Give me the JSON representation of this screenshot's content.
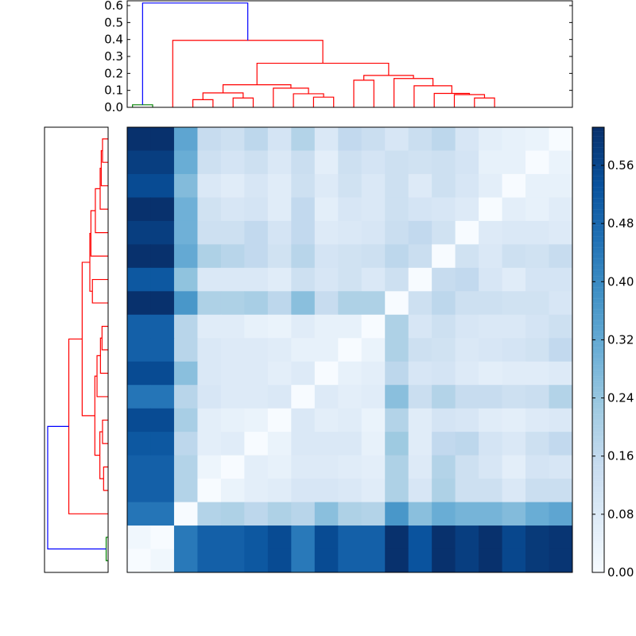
{
  "chart_data": [
    {
      "type": "heatmap",
      "colormap": "Blues",
      "vmin": 0.0,
      "vmax": 0.6125,
      "colorbar_ticks": [
        "0.00",
        "0.08",
        "0.16",
        "0.24",
        "0.32",
        "0.40",
        "0.48",
        "0.56"
      ],
      "matrix": [
        [
          0.61,
          0.61,
          0.33,
          0.15,
          0.13,
          0.17,
          0.11,
          0.19,
          0.09,
          0.16,
          0.14,
          0.1,
          0.14,
          0.17,
          0.1,
          0.06,
          0.05,
          0.04,
          0.0
        ],
        [
          0.58,
          0.58,
          0.31,
          0.13,
          0.11,
          0.13,
          0.09,
          0.14,
          0.06,
          0.13,
          0.11,
          0.13,
          0.12,
          0.13,
          0.11,
          0.05,
          0.05,
          0.0,
          0.04
        ],
        [
          0.55,
          0.55,
          0.27,
          0.09,
          0.07,
          0.1,
          0.07,
          0.13,
          0.08,
          0.12,
          0.09,
          0.13,
          0.08,
          0.13,
          0.1,
          0.06,
          0.0,
          0.05,
          0.05
        ],
        [
          0.61,
          0.61,
          0.3,
          0.12,
          0.1,
          0.11,
          0.07,
          0.16,
          0.06,
          0.1,
          0.09,
          0.13,
          0.11,
          0.1,
          0.08,
          0.0,
          0.06,
          0.05,
          0.07
        ],
        [
          0.58,
          0.58,
          0.3,
          0.13,
          0.13,
          0.16,
          0.11,
          0.16,
          0.08,
          0.09,
          0.1,
          0.14,
          0.16,
          0.12,
          0.0,
          0.08,
          0.09,
          0.09,
          0.08
        ],
        [
          0.61,
          0.61,
          0.32,
          0.2,
          0.18,
          0.16,
          0.12,
          0.18,
          0.11,
          0.12,
          0.13,
          0.17,
          0.14,
          0.0,
          0.12,
          0.09,
          0.13,
          0.12,
          0.15
        ],
        [
          0.52,
          0.52,
          0.25,
          0.09,
          0.09,
          0.09,
          0.07,
          0.13,
          0.1,
          0.12,
          0.09,
          0.13,
          0.0,
          0.15,
          0.16,
          0.1,
          0.07,
          0.11,
          0.11
        ],
        [
          0.61,
          0.61,
          0.37,
          0.2,
          0.2,
          0.21,
          0.17,
          0.26,
          0.15,
          0.2,
          0.2,
          0.0,
          0.13,
          0.17,
          0.13,
          0.13,
          0.12,
          0.12,
          0.1
        ],
        [
          0.5,
          0.5,
          0.18,
          0.07,
          0.07,
          0.05,
          0.04,
          0.07,
          0.05,
          0.05,
          0.0,
          0.2,
          0.1,
          0.13,
          0.1,
          0.09,
          0.09,
          0.11,
          0.13
        ],
        [
          0.5,
          0.5,
          0.18,
          0.09,
          0.08,
          0.08,
          0.07,
          0.05,
          0.05,
          0.0,
          0.04,
          0.2,
          0.13,
          0.12,
          0.09,
          0.1,
          0.11,
          0.12,
          0.16
        ],
        [
          0.55,
          0.55,
          0.26,
          0.09,
          0.08,
          0.08,
          0.06,
          0.08,
          0.0,
          0.05,
          0.06,
          0.17,
          0.1,
          0.11,
          0.08,
          0.06,
          0.07,
          0.07,
          0.08
        ],
        [
          0.45,
          0.45,
          0.18,
          0.1,
          0.08,
          0.08,
          0.09,
          0.0,
          0.08,
          0.06,
          0.07,
          0.26,
          0.14,
          0.19,
          0.15,
          0.15,
          0.13,
          0.14,
          0.19
        ],
        [
          0.55,
          0.55,
          0.21,
          0.06,
          0.05,
          0.04,
          0.0,
          0.09,
          0.06,
          0.07,
          0.04,
          0.19,
          0.07,
          0.11,
          0.1,
          0.07,
          0.06,
          0.08,
          0.09
        ],
        [
          0.52,
          0.52,
          0.17,
          0.06,
          0.07,
          0.0,
          0.04,
          0.09,
          0.09,
          0.09,
          0.05,
          0.23,
          0.07,
          0.16,
          0.17,
          0.11,
          0.09,
          0.13,
          0.16
        ],
        [
          0.5,
          0.5,
          0.19,
          0.03,
          0.0,
          0.06,
          0.05,
          0.08,
          0.08,
          0.07,
          0.06,
          0.2,
          0.08,
          0.19,
          0.13,
          0.1,
          0.06,
          0.11,
          0.1
        ],
        [
          0.5,
          0.5,
          0.19,
          0.0,
          0.04,
          0.06,
          0.07,
          0.1,
          0.1,
          0.09,
          0.07,
          0.2,
          0.1,
          0.2,
          0.13,
          0.13,
          0.09,
          0.14,
          0.14
        ],
        [
          0.45,
          0.45,
          0.0,
          0.19,
          0.2,
          0.17,
          0.2,
          0.18,
          0.26,
          0.2,
          0.19,
          0.37,
          0.26,
          0.31,
          0.29,
          0.29,
          0.27,
          0.31,
          0.33
        ],
        [
          0.02,
          0.0,
          0.44,
          0.5,
          0.5,
          0.52,
          0.55,
          0.44,
          0.55,
          0.5,
          0.5,
          0.61,
          0.53,
          0.61,
          0.58,
          0.61,
          0.56,
          0.59,
          0.6
        ],
        [
          0.0,
          0.02,
          0.44,
          0.5,
          0.5,
          0.52,
          0.55,
          0.44,
          0.55,
          0.5,
          0.5,
          0.61,
          0.53,
          0.61,
          0.58,
          0.61,
          0.56,
          0.59,
          0.6
        ]
      ]
    },
    {
      "type": "dendrogram",
      "orientation": "top",
      "ylim": [
        0,
        0.635
      ],
      "yticks": [
        "0.0",
        "0.1",
        "0.2",
        "0.3",
        "0.4",
        "0.5",
        "0.6"
      ],
      "link_colors": {
        "cluster_a": "#008000",
        "cluster_b": "#ff0000",
        "above_threshold": "#0000ff"
      },
      "linkage": [
        [
          0,
          1,
          0.015,
          "cluster_a"
        ],
        [
          3,
          4,
          0.045,
          "cluster_b"
        ],
        [
          5,
          6,
          0.055,
          "cluster_b"
        ],
        [
          20,
          21,
          0.085,
          "cluster_b"
        ],
        [
          9,
          10,
          0.06,
          "cluster_b"
        ],
        [
          8,
          23,
          0.08,
          "cluster_b"
        ],
        [
          7,
          24,
          0.113,
          "cluster_b"
        ],
        [
          22,
          25,
          0.133,
          "cluster_b"
        ],
        [
          11,
          12,
          0.16,
          "cluster_b"
        ],
        [
          17,
          18,
          0.055,
          "cluster_b"
        ],
        [
          16,
          28,
          0.075,
          "cluster_b"
        ],
        [
          15,
          29,
          0.082,
          "cluster_b"
        ],
        [
          14,
          30,
          0.127,
          "cluster_b"
        ],
        [
          13,
          31,
          0.17,
          "cluster_b"
        ],
        [
          27,
          32,
          0.188,
          "cluster_b"
        ],
        [
          26,
          33,
          0.26,
          "cluster_b"
        ],
        [
          2,
          34,
          0.395,
          "cluster_b"
        ],
        [
          19,
          35,
          0.615,
          "above_threshold"
        ]
      ]
    },
    {
      "type": "dendrogram",
      "orientation": "left",
      "note_same_tree_as": "top",
      "linkage": [
        [
          0,
          1,
          0.02,
          "cluster_a"
        ],
        [
          3,
          4,
          0.046,
          "cluster_b"
        ],
        [
          5,
          6,
          0.057,
          "cluster_b"
        ],
        [
          20,
          21,
          0.084,
          "cluster_b"
        ],
        [
          9,
          10,
          0.062,
          "cluster_b"
        ],
        [
          8,
          23,
          0.078,
          "cluster_b"
        ],
        [
          7,
          24,
          0.113,
          "cluster_b"
        ],
        [
          22,
          25,
          0.135,
          "cluster_b"
        ],
        [
          11,
          12,
          0.16,
          "cluster_b"
        ],
        [
          17,
          18,
          0.057,
          "cluster_b"
        ],
        [
          16,
          28,
          0.07,
          "cluster_b"
        ],
        [
          15,
          29,
          0.081,
          "cluster_b"
        ],
        [
          14,
          30,
          0.13,
          "cluster_b"
        ],
        [
          13,
          31,
          0.175,
          "cluster_b"
        ],
        [
          27,
          32,
          0.186,
          "cluster_b"
        ],
        [
          26,
          33,
          0.264,
          "cluster_b"
        ],
        [
          2,
          34,
          0.4,
          "cluster_b"
        ],
        [
          19,
          35,
          0.615,
          "above_threshold"
        ]
      ]
    }
  ]
}
